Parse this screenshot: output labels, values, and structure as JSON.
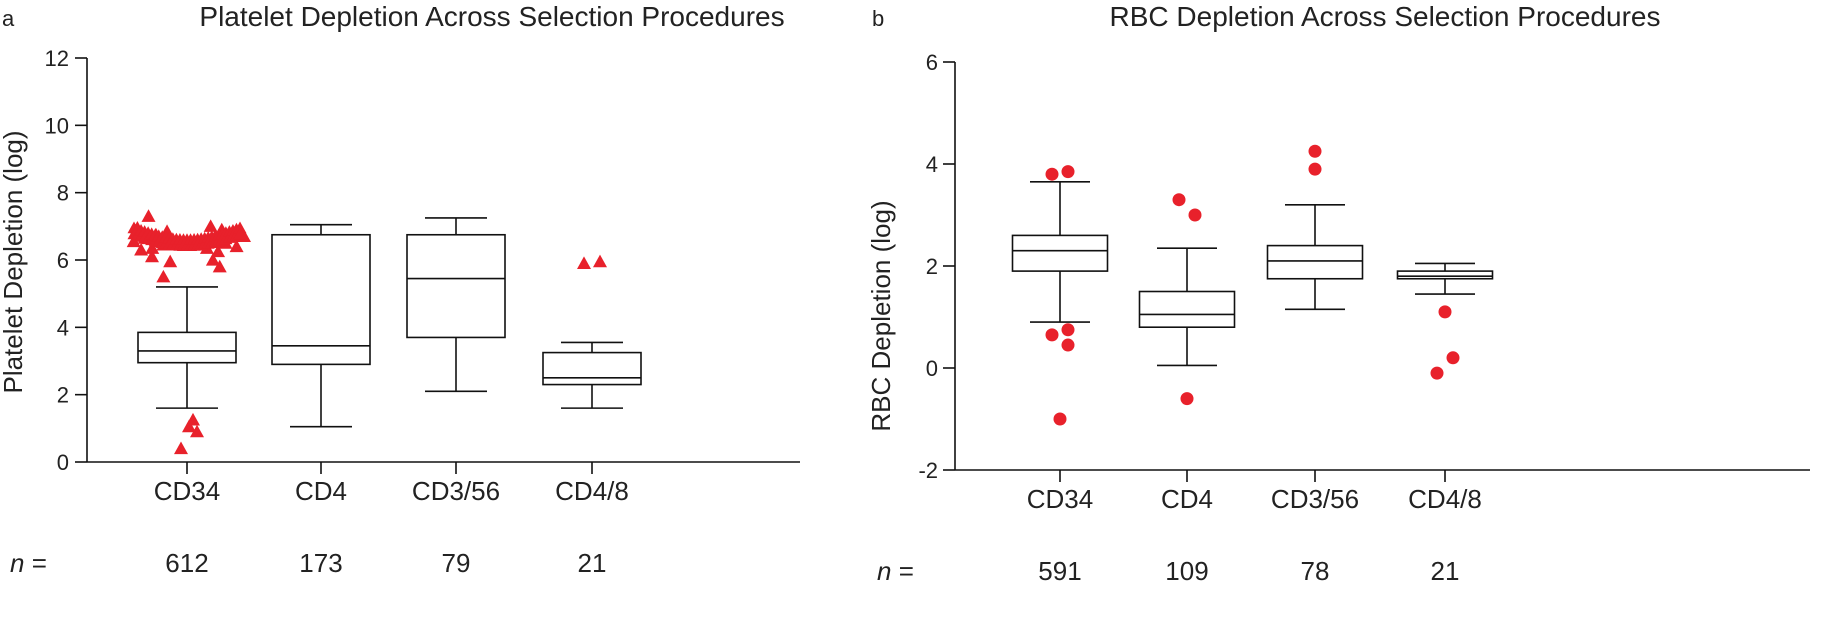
{
  "chart_data": [
    {
      "type": "box",
      "panel": "a",
      "title": "Platelet Depletion Across Selection Procedures",
      "ylabel": "Platelet Depletion (log)",
      "xlabel": "",
      "ylim": [
        0,
        12
      ],
      "yticks": [
        0,
        2,
        4,
        6,
        8,
        10,
        12
      ],
      "grid": false,
      "categories": [
        "CD34",
        "CD4",
        "CD3/56",
        "CD4/8"
      ],
      "n_label": "n =",
      "n": [
        "612",
        "173",
        "79",
        "21"
      ],
      "outlier_marker": "triangle",
      "outlier_color": "#e8212b",
      "boxes": [
        {
          "q1": 2.95,
          "median": 3.3,
          "q3": 3.85,
          "whisker_low": 1.6,
          "whisker_high": 5.2,
          "outliers": [
            0.4,
            0.9,
            1.05,
            1.25,
            5.5,
            5.8,
            5.95,
            6.0,
            6.1,
            6.25,
            6.3,
            6.35,
            6.35,
            6.4,
            6.45,
            6.5,
            6.55,
            6.6,
            6.65,
            6.7,
            6.75,
            6.8,
            6.85,
            6.9,
            6.95,
            7.0,
            7.3
          ]
        },
        {
          "q1": 2.9,
          "median": 3.45,
          "q3": 6.75,
          "whisker_low": 1.05,
          "whisker_high": 7.05,
          "outliers": []
        },
        {
          "q1": 3.7,
          "median": 5.45,
          "q3": 6.75,
          "whisker_low": 2.1,
          "whisker_high": 7.25,
          "outliers": []
        },
        {
          "q1": 2.3,
          "median": 2.5,
          "q3": 3.25,
          "whisker_low": 1.6,
          "whisker_high": 3.55,
          "outliers": [
            5.9,
            5.95
          ]
        }
      ]
    },
    {
      "type": "box",
      "panel": "b",
      "title": "RBC Depletion Across Selection Procedures",
      "ylabel": "RBC Depletion (log)",
      "xlabel": "",
      "ylim": [
        -2,
        6
      ],
      "yticks": [
        -2,
        0,
        2,
        4,
        6
      ],
      "grid": false,
      "categories": [
        "CD34",
        "CD4",
        "CD3/56",
        "CD4/8"
      ],
      "n_label": "n =",
      "n": [
        "591",
        "109",
        "78",
        "21"
      ],
      "outlier_marker": "circle",
      "outlier_color": "#e8212b",
      "boxes": [
        {
          "q1": 1.9,
          "median": 2.3,
          "q3": 2.6,
          "whisker_low": 0.9,
          "whisker_high": 3.65,
          "outliers": [
            -1.0,
            0.45,
            0.65,
            0.75,
            3.8,
            3.85
          ]
        },
        {
          "q1": 0.8,
          "median": 1.05,
          "q3": 1.5,
          "whisker_low": 0.05,
          "whisker_high": 2.35,
          "outliers": [
            -0.6,
            3.0,
            3.3
          ]
        },
        {
          "q1": 1.75,
          "median": 2.1,
          "q3": 2.4,
          "whisker_low": 1.15,
          "whisker_high": 3.2,
          "outliers": [
            3.9,
            4.25
          ]
        },
        {
          "q1": 1.75,
          "median": 1.8,
          "q3": 1.9,
          "whisker_low": 1.45,
          "whisker_high": 2.05,
          "outliers": [
            -0.1,
            0.2,
            1.1
          ]
        }
      ]
    }
  ]
}
